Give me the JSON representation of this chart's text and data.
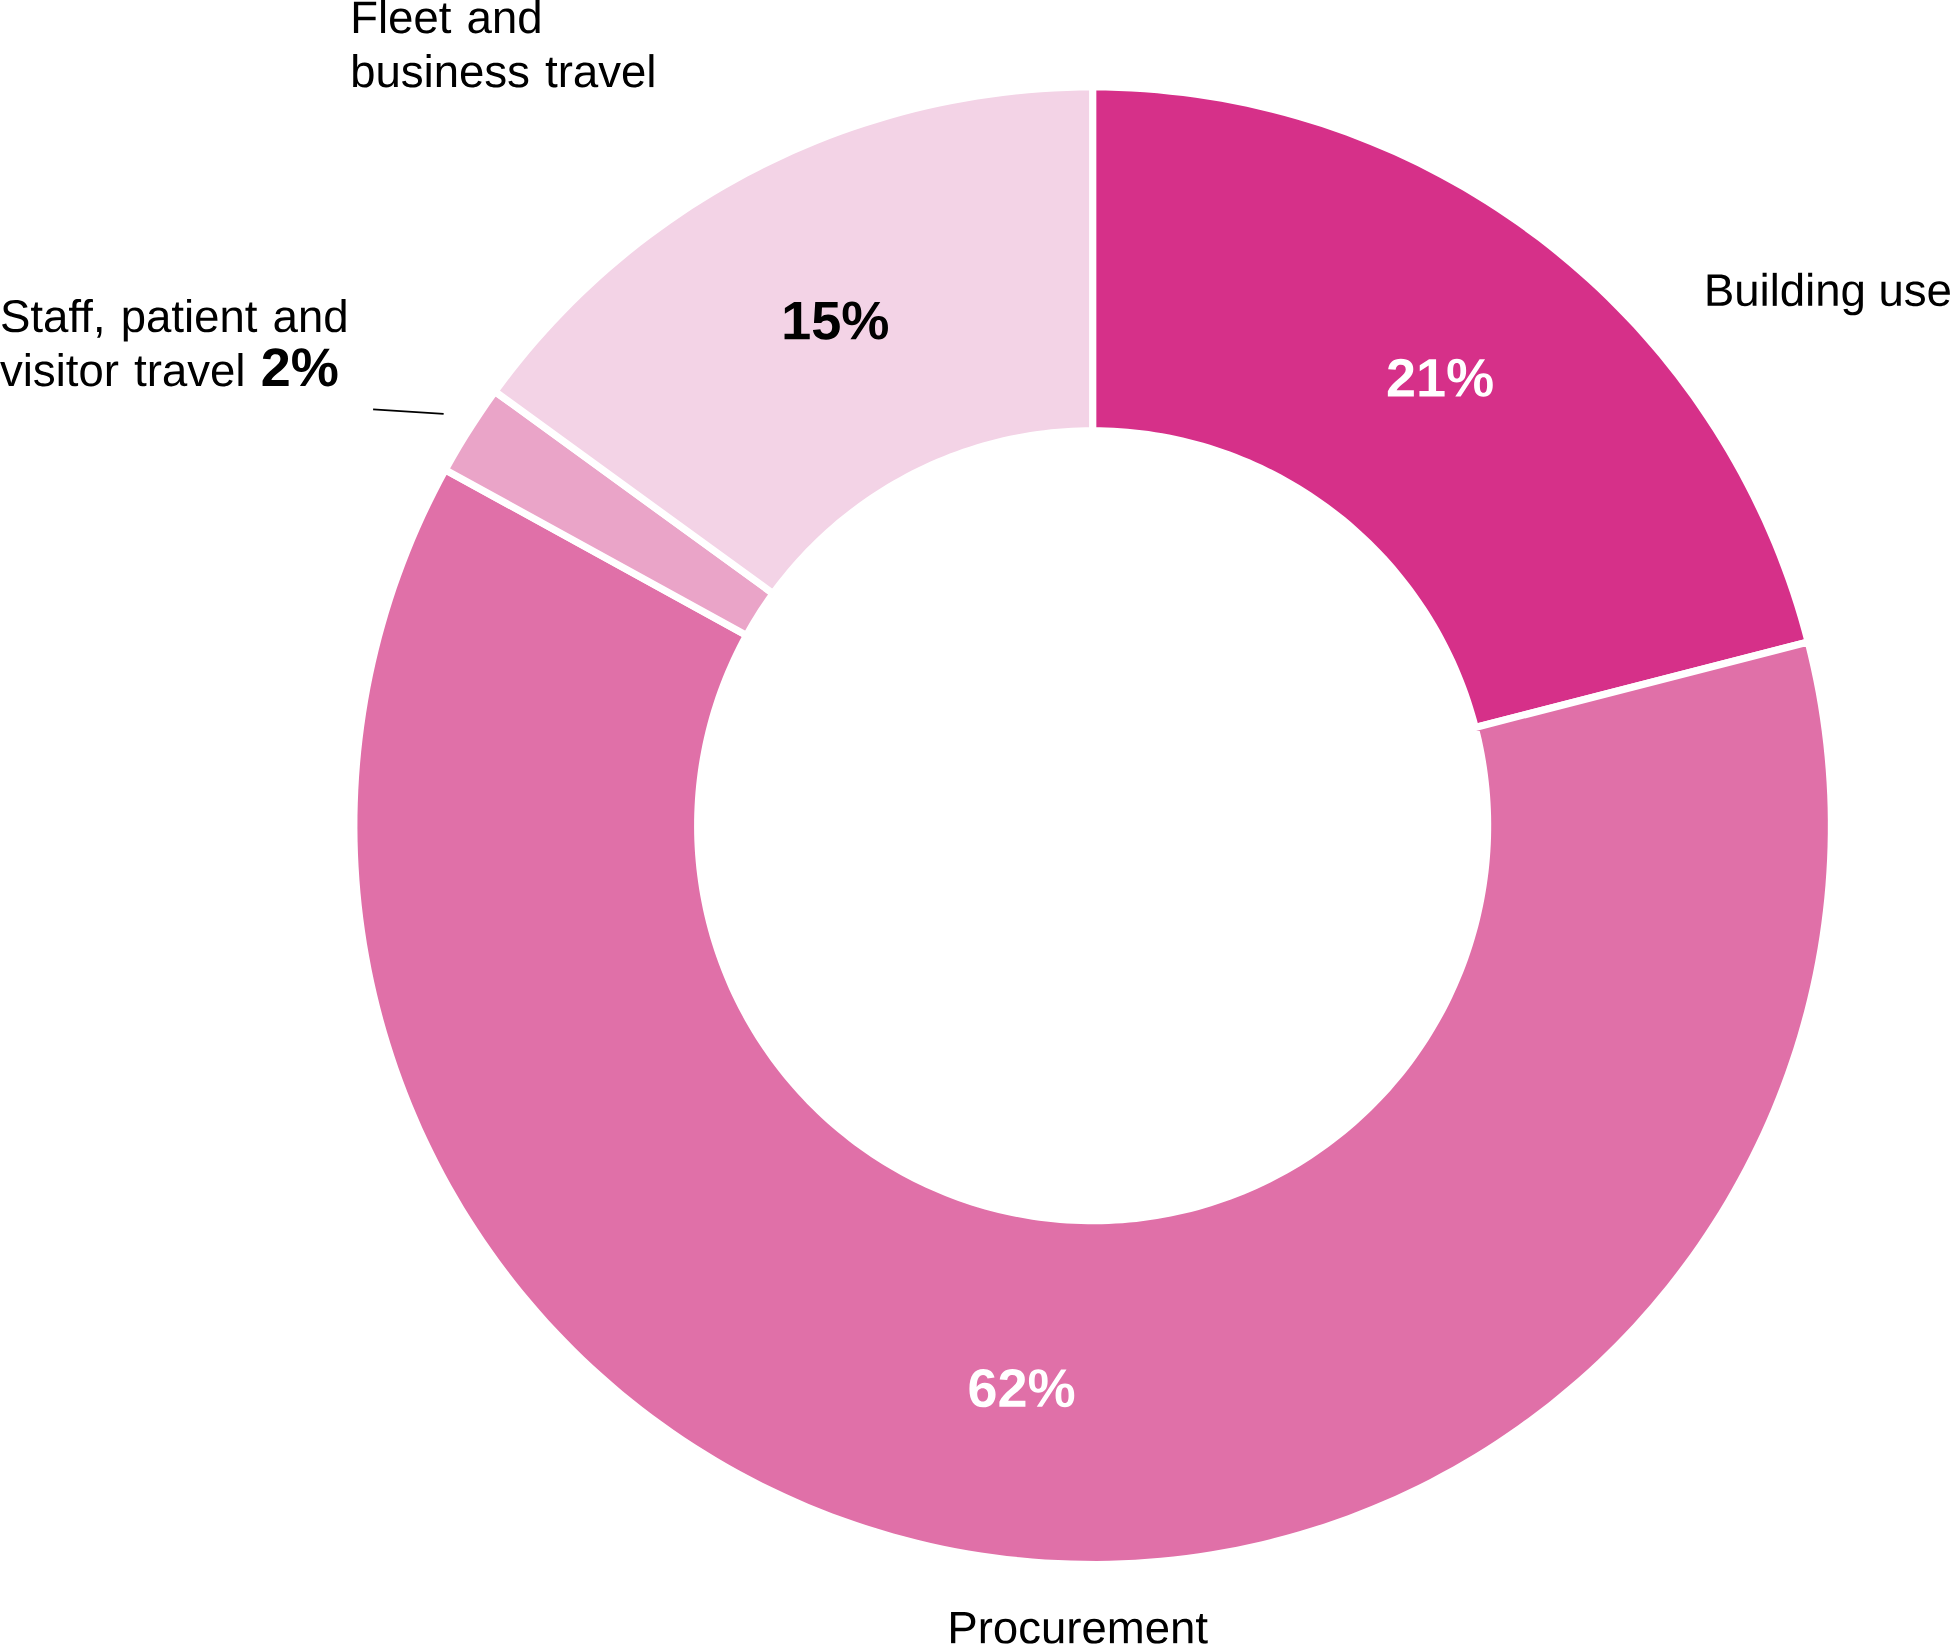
{
  "chart_data": {
    "type": "donut",
    "categories": [
      "Building use",
      "Procurement",
      "Staff, patient and visitor travel",
      "Fleet and business travel"
    ],
    "values": [
      21,
      62,
      2,
      15
    ],
    "colors": [
      "#d63089",
      "#e070a8",
      "#eaa4c8",
      "#f3d3e6"
    ],
    "value_labels": [
      "21%",
      "62%",
      "2%",
      "15%"
    ]
  }
}
